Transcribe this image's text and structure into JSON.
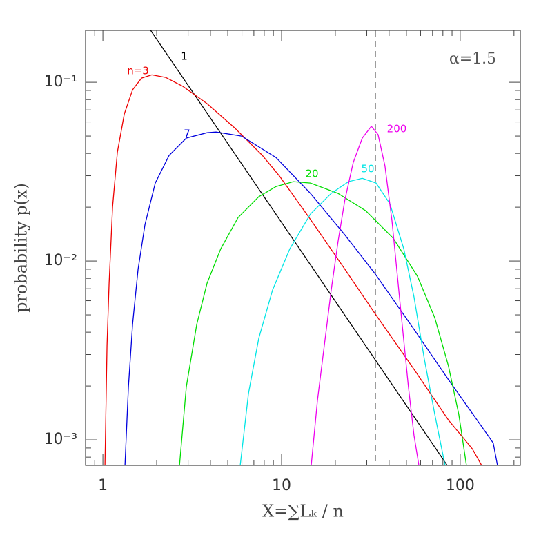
{
  "chart_data": {
    "type": "line",
    "annotation": "α=1.5",
    "xlabel": "X=∑Lₖ / n",
    "ylabel": "probability p(x)",
    "xscale": "log",
    "yscale": "log",
    "grid": false,
    "xlim": [
      0.8,
      217
    ],
    "ylim": [
      0.00072,
      0.195
    ],
    "xticks": [
      1,
      10,
      100
    ],
    "xminorticks": [
      0.9,
      2,
      3,
      4,
      5,
      6,
      7,
      8,
      9,
      20,
      30,
      40,
      50,
      60,
      70,
      80,
      90,
      200
    ],
    "yticks": [
      {
        "value": 0.001,
        "label": "10⁻³"
      },
      {
        "value": 0.01,
        "label": "10⁻²"
      },
      {
        "value": 0.1,
        "label": "10⁻¹"
      }
    ],
    "yminorticks": [
      0.0008,
      0.0009,
      0.002,
      0.003,
      0.004,
      0.005,
      0.006,
      0.007,
      0.008,
      0.009,
      0.02,
      0.03,
      0.04,
      0.05,
      0.06,
      0.07,
      0.08,
      0.09
    ],
    "vline": {
      "x": 33.5,
      "color": "#555555",
      "dashed": true
    },
    "series": [
      {
        "name": "1",
        "color": "#000000",
        "x": [
          1.85,
          84.5
        ],
        "values": [
          0.195,
          0.00072
        ]
      },
      {
        "name": "n=3",
        "color": "#ee0000",
        "x": [
          1.027,
          1.055,
          1.083,
          1.133,
          1.205,
          1.317,
          1.466,
          1.645,
          1.879,
          2.245,
          2.804,
          3.83,
          5.46,
          7.8,
          9.73,
          14.5,
          22.6,
          33.5,
          55.1,
          85.9,
          117,
          131.8
        ],
        "values": [
          0.00072,
          0.00338,
          0.00752,
          0.02,
          0.0407,
          0.0664,
          0.0907,
          0.1055,
          0.11,
          0.1064,
          0.0948,
          0.0759,
          0.0556,
          0.039,
          0.0299,
          0.0171,
          0.009,
          0.00505,
          0.00248,
          0.00129,
          0.00089,
          0.00072
        ]
      },
      {
        "name": "7",
        "color": "#0000dd",
        "x": [
          1.329,
          1.39,
          1.466,
          1.574,
          1.72,
          1.965,
          2.348,
          2.932,
          3.83,
          4.3,
          5.97,
          9.31,
          14.5,
          22.6,
          33.5,
          55.1,
          85.9,
          134,
          153,
          161.6
        ],
        "values": [
          0.00072,
          0.00198,
          0.00442,
          0.009,
          0.016,
          0.0273,
          0.039,
          0.0487,
          0.0522,
          0.0527,
          0.05,
          0.0379,
          0.0239,
          0.014,
          0.00845,
          0.00415,
          0.00217,
          0.00116,
          0.00096,
          0.00072
        ]
      },
      {
        "name": "20",
        "color": "#00dd00",
        "x": [
          2.683,
          2.932,
          3.351,
          3.83,
          4.57,
          5.71,
          7.46,
          9.31,
          11.63,
          14.5,
          20.7,
          29.6,
          42.2,
          57.6,
          72.0,
          85.9,
          98.2,
          108.3
        ],
        "values": [
          0.00072,
          0.00198,
          0.00442,
          0.00752,
          0.0117,
          0.0175,
          0.0229,
          0.0261,
          0.0278,
          0.0273,
          0.0239,
          0.0191,
          0.0134,
          0.00822,
          0.00482,
          0.00259,
          0.00139,
          0.00072
        ]
      },
      {
        "name": "50",
        "color": "#00e5e5",
        "x": [
          5.87,
          6.53,
          7.46,
          8.91,
          11.13,
          14.5,
          18.97,
          23.7,
          28.3,
          33.8,
          40.4,
          48.3,
          55.1,
          63.0,
          72.0,
          82.2
        ],
        "values": [
          0.00072,
          0.00182,
          0.0037,
          0.00689,
          0.0117,
          0.0183,
          0.0239,
          0.0278,
          0.029,
          0.0273,
          0.0209,
          0.0117,
          0.0063,
          0.00283,
          0.00139,
          0.00072
        ]
      },
      {
        "name": "200",
        "color": "#ee00ee",
        "x": [
          14.66,
          15.88,
          17.36,
          18.97,
          20.7,
          22.6,
          25.2,
          28.3,
          31.8,
          34.7,
          37.9,
          41.5,
          46.1,
          51.3,
          55.1,
          58.7
        ],
        "values": [
          0.00072,
          0.00166,
          0.00338,
          0.00689,
          0.0128,
          0.0219,
          0.0356,
          0.0487,
          0.0567,
          0.0509,
          0.0341,
          0.0168,
          0.00577,
          0.00198,
          0.00106,
          0.00072
        ]
      }
    ]
  }
}
